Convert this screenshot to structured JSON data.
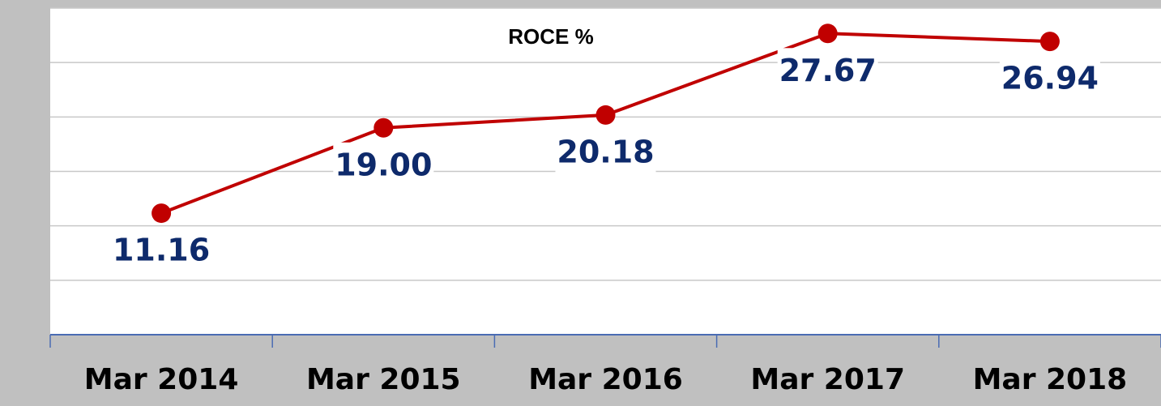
{
  "chart_data": {
    "type": "line",
    "title": "ROCE %",
    "categories": [
      "Mar 2014",
      "Mar 2015",
      "Mar 2016",
      "Mar 2017",
      "Mar 2018"
    ],
    "values": [
      11.16,
      19,
      20.18,
      27.67,
      26.94
    ],
    "value_labels": [
      "11.16",
      "19.00",
      "20.18",
      "27.67",
      "26.94"
    ],
    "color": "#c00000",
    "ylim": [
      0,
      30
    ],
    "yticks": [
      0,
      5,
      10,
      15,
      20,
      25,
      30
    ],
    "grid": true
  }
}
